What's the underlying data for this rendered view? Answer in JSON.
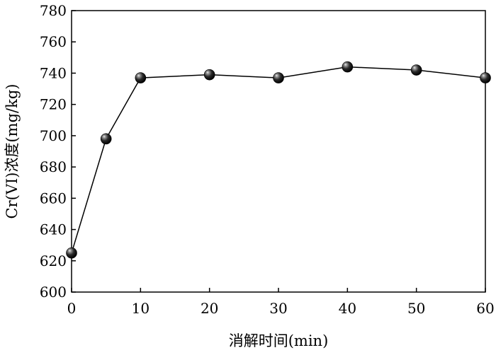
{
  "chart_data": {
    "type": "line",
    "title": "",
    "xlabel": "消解时间(min)",
    "ylabel": "Cr(VI)浓度(mg/kg)",
    "xlim": [
      0,
      60
    ],
    "ylim": [
      600,
      780
    ],
    "x_ticks": [
      0,
      10,
      20,
      30,
      40,
      50,
      60
    ],
    "y_ticks": [
      600,
      620,
      640,
      660,
      680,
      700,
      720,
      740,
      760,
      780
    ],
    "grid": false,
    "legend": "none",
    "series": [
      {
        "x": [
          0,
          5,
          10,
          20,
          30,
          40,
          50,
          60
        ],
        "values": [
          625,
          698,
          737,
          739,
          737,
          744,
          742,
          737
        ],
        "color": "#000000",
        "marker": "sphere"
      }
    ]
  }
}
